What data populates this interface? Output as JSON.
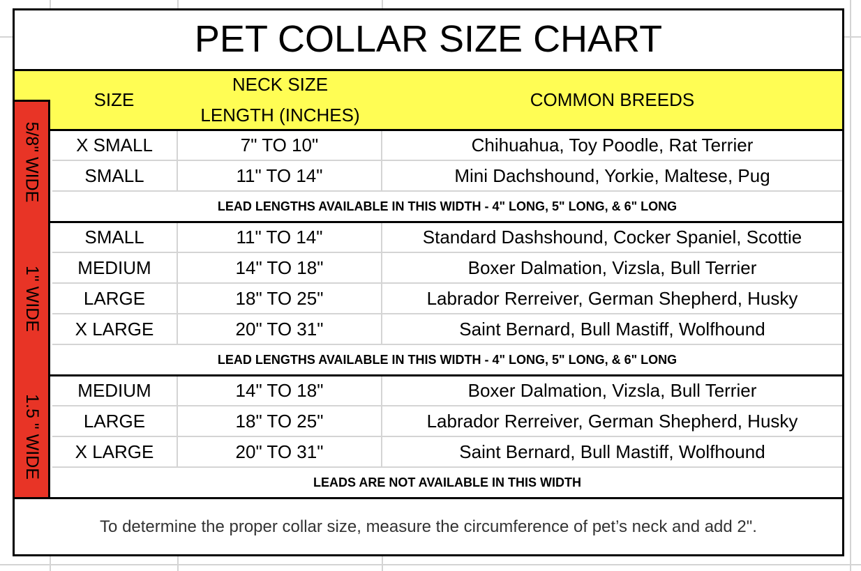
{
  "title": "PET COLLAR SIZE CHART",
  "headers": {
    "size": "SIZE",
    "neck_line1": "NECK SIZE",
    "neck_line2": "LENGTH (INCHES)",
    "breeds": "COMMON BREEDS"
  },
  "colors": {
    "header_bg": "#fffd54",
    "width_band": "#e83426"
  },
  "sections": [
    {
      "width_label": "5/8\" WIDE",
      "rows": [
        {
          "size": "X SMALL",
          "neck": "7\" TO 10\"",
          "breeds": "Chihuahua, Toy Poodle, Rat Terrier"
        },
        {
          "size": "SMALL",
          "neck": "11\" TO 14\"",
          "breeds": "Mini Dachshound, Yorkie, Maltese, Pug"
        }
      ],
      "note": "LEAD LENGTHS AVAILABLE IN THIS WIDTH - 4\" LONG, 5\" LONG, & 6\" LONG"
    },
    {
      "width_label": "1\" WIDE",
      "rows": [
        {
          "size": "SMALL",
          "neck": "11\" TO 14\"",
          "breeds": "Standard Dashshound, Cocker Spaniel, Scottie"
        },
        {
          "size": "MEDIUM",
          "neck": "14\" TO 18\"",
          "breeds": "Boxer Dalmation, Vizsla, Bull Terrier"
        },
        {
          "size": "LARGE",
          "neck": "18\" TO 25\"",
          "breeds": "Labrador Rerreiver, German Shepherd, Husky"
        },
        {
          "size": "X LARGE",
          "neck": "20\" TO 31\"",
          "breeds": "Saint Bernard, Bull Mastiff, Wolfhound"
        }
      ],
      "note": "LEAD LENGTHS AVAILABLE IN THIS WIDTH  - 4\" LONG, 5\" LONG, & 6\" LONG"
    },
    {
      "width_label": "1.5 \" WIDE",
      "rows": [
        {
          "size": "MEDIUM",
          "neck": "14\" TO 18\"",
          "breeds": "Boxer Dalmation, Vizsla, Bull Terrier"
        },
        {
          "size": "LARGE",
          "neck": "18\" TO 25\"",
          "breeds": "Labrador Rerreiver, German Shepherd, Husky"
        },
        {
          "size": "X LARGE",
          "neck": "20\" TO 31\"",
          "breeds": "Saint Bernard, Bull Mastiff, Wolfhound"
        }
      ],
      "note": "LEADS ARE NOT AVAILABLE IN THIS WIDTH"
    }
  ],
  "footer": "To determine the proper collar size, measure the circumference of pet’s neck and add 2\"."
}
